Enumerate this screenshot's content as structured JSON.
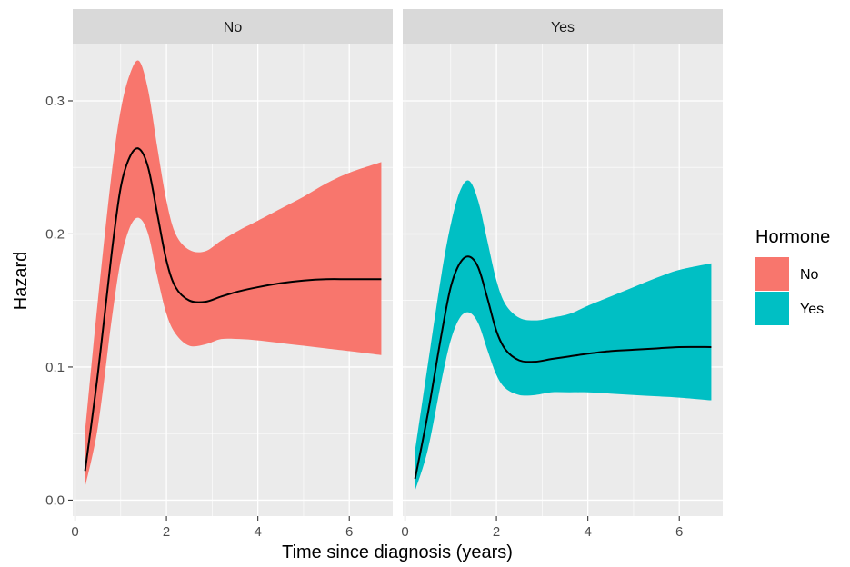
{
  "chart_data": {
    "type": "area",
    "facet_variable": "Hormone",
    "xlabel": "Time since diagnosis (years)",
    "ylabel": "Hazard",
    "xlim": [
      -0.05,
      6.95
    ],
    "ylim": [
      -0.012,
      0.343
    ],
    "x_ticks": [
      0,
      2,
      4,
      6
    ],
    "y_ticks": [
      0.0,
      0.1,
      0.2,
      0.3
    ],
    "y_tick_labels": [
      "0.0",
      "0.1",
      "0.2",
      "0.3"
    ],
    "grid": true,
    "legend": {
      "title": "Hormone",
      "position": "right",
      "entries": [
        {
          "label": "No",
          "color": "#F8766D"
        },
        {
          "label": "Yes",
          "color": "#00BFC4"
        }
      ]
    },
    "panels": [
      {
        "strip": "No",
        "fill": "#F8766D",
        "line_color": "#000000",
        "x": [
          0.22,
          0.5,
          0.8,
          1.0,
          1.2,
          1.4,
          1.6,
          1.8,
          2.0,
          2.2,
          2.5,
          2.85,
          3.2,
          3.6,
          4.0,
          4.5,
          5.0,
          5.5,
          6.0,
          6.7
        ],
        "estimate": [
          0.022,
          0.095,
          0.185,
          0.235,
          0.258,
          0.264,
          0.25,
          0.215,
          0.18,
          0.16,
          0.15,
          0.149,
          0.153,
          0.157,
          0.16,
          0.163,
          0.165,
          0.166,
          0.166,
          0.166
        ],
        "lower": [
          0.01,
          0.055,
          0.135,
          0.18,
          0.205,
          0.212,
          0.2,
          0.168,
          0.14,
          0.125,
          0.116,
          0.117,
          0.121,
          0.121,
          0.12,
          0.118,
          0.116,
          0.114,
          0.112,
          0.109
        ],
        "upper": [
          0.052,
          0.15,
          0.245,
          0.293,
          0.32,
          0.33,
          0.308,
          0.265,
          0.225,
          0.2,
          0.188,
          0.187,
          0.195,
          0.203,
          0.21,
          0.219,
          0.228,
          0.238,
          0.246,
          0.254
        ]
      },
      {
        "strip": "Yes",
        "fill": "#00BFC4",
        "line_color": "#000000",
        "x": [
          0.22,
          0.5,
          0.8,
          1.0,
          1.2,
          1.4,
          1.6,
          1.8,
          2.0,
          2.2,
          2.5,
          2.85,
          3.2,
          3.6,
          4.0,
          4.5,
          5.0,
          5.5,
          6.0,
          6.7
        ],
        "estimate": [
          0.016,
          0.065,
          0.125,
          0.16,
          0.178,
          0.183,
          0.175,
          0.152,
          0.127,
          0.113,
          0.105,
          0.104,
          0.106,
          0.108,
          0.11,
          0.112,
          0.113,
          0.114,
          0.115,
          0.115
        ],
        "lower": [
          0.007,
          0.038,
          0.09,
          0.12,
          0.137,
          0.141,
          0.133,
          0.113,
          0.094,
          0.084,
          0.079,
          0.079,
          0.081,
          0.081,
          0.081,
          0.08,
          0.079,
          0.078,
          0.077,
          0.075
        ],
        "upper": [
          0.037,
          0.102,
          0.17,
          0.207,
          0.232,
          0.24,
          0.225,
          0.195,
          0.165,
          0.147,
          0.137,
          0.135,
          0.137,
          0.14,
          0.146,
          0.153,
          0.16,
          0.167,
          0.173,
          0.178
        ]
      }
    ]
  }
}
